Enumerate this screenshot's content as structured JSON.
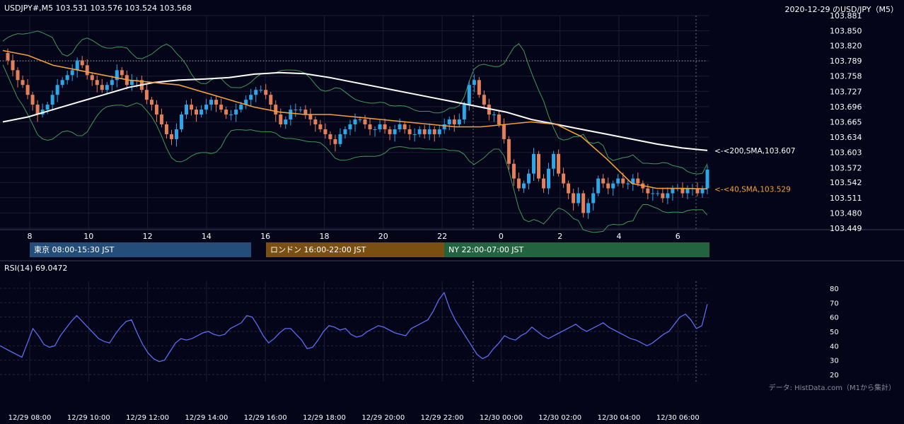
{
  "header": {
    "symbol_info": "USDJPY#,M5 103.531 103.576 103.524 103.568",
    "date_title": "2020-12-29 のUSD/JPY（M5）"
  },
  "sessions": [
    {
      "label": "東京 08:00-15:30 JST",
      "color": "#244d7a"
    },
    {
      "label": "ロンドン 16:00-22:00 JST",
      "color": "#7a4f12"
    },
    {
      "label": "NY 22:00-07:00 JST",
      "color": "#24633f"
    }
  ],
  "rsi": {
    "label": "RSI(14) 69.0472"
  },
  "footer": {
    "source": "データ: HistData.com（M1から集計）"
  },
  "colors": {
    "background": "#050519",
    "up_candle": "#2ca7e8",
    "down_candle": "#e3805a",
    "sma200": "#ffffff",
    "sma40": "#f2a03a",
    "bollinger": "#3f9a55",
    "rsi_line": "#5b6cf0"
  },
  "chart_data": [
    {
      "type": "candlestick",
      "title": "USDJPY#,M5",
      "x_tick_labels": [
        "8",
        "10",
        "12",
        "14",
        "16",
        "18",
        "20",
        "22",
        "0",
        "2",
        "4",
        "6"
      ],
      "y_tick_labels": [
        "103.881",
        "103.850",
        "103.820",
        "103.789",
        "103.758",
        "103.727",
        "103.696",
        "103.665",
        "103.634",
        "103.603",
        "103.572",
        "103.542",
        "103.511",
        "103.480",
        "103.449"
      ],
      "ylim": [
        103.449,
        103.881
      ],
      "reference_level": 103.789,
      "grid": true,
      "close_series": [
        103.805,
        103.79,
        103.77,
        103.75,
        103.74,
        103.72,
        103.7,
        103.68,
        103.69,
        103.7,
        103.72,
        103.74,
        103.75,
        103.76,
        103.77,
        103.79,
        103.78,
        103.76,
        103.75,
        103.74,
        103.73,
        103.74,
        103.75,
        103.77,
        103.76,
        103.74,
        103.75,
        103.75,
        103.73,
        103.71,
        103.7,
        103.68,
        103.66,
        103.64,
        103.63,
        103.65,
        103.68,
        103.7,
        103.69,
        103.68,
        103.69,
        103.7,
        103.71,
        103.7,
        103.69,
        103.68,
        103.68,
        103.69,
        103.7,
        103.71,
        103.72,
        103.73,
        103.73,
        103.72,
        103.7,
        103.68,
        103.66,
        103.67,
        103.69,
        103.69,
        103.69,
        103.68,
        103.67,
        103.66,
        103.65,
        103.64,
        103.63,
        103.62,
        103.64,
        103.65,
        103.66,
        103.67,
        103.67,
        103.66,
        103.65,
        103.65,
        103.66,
        103.65,
        103.64,
        103.65,
        103.66,
        103.65,
        103.64,
        103.64,
        103.65,
        103.64,
        103.65,
        103.64,
        103.65,
        103.66,
        103.67,
        103.66,
        103.67,
        103.7,
        103.74,
        103.75,
        103.72,
        103.7,
        103.68,
        103.68,
        103.66,
        103.63,
        103.58,
        103.55,
        103.53,
        103.54,
        103.56,
        103.6,
        103.55,
        103.53,
        103.57,
        103.6,
        103.56,
        103.54,
        103.52,
        103.5,
        103.52,
        103.48,
        103.5,
        103.52,
        103.55,
        103.54,
        103.53,
        103.54,
        103.55,
        103.54,
        103.54,
        103.55,
        103.54,
        103.53,
        103.52,
        103.52,
        103.52,
        103.51,
        103.52,
        103.53,
        103.53,
        103.52,
        103.53,
        103.53,
        103.52,
        103.53,
        103.568
      ],
      "series": [
        {
          "name": "SMA",
          "period": 200,
          "annotation": "<-<200,SMA,103.607",
          "values": [
            103.665,
            103.675,
            103.69,
            103.705,
            103.72,
            103.735,
            103.745,
            103.75,
            103.752,
            103.755,
            103.762,
            103.765,
            103.763,
            103.755,
            103.745,
            103.735,
            103.725,
            103.715,
            103.705,
            103.695,
            103.685,
            103.67,
            103.66,
            103.65,
            103.64,
            103.63,
            103.62,
            103.612,
            103.607
          ]
        },
        {
          "name": "SMA",
          "period": 40,
          "annotation": "<-<40,SMA,103.529",
          "values": [
            103.81,
            103.8,
            103.78,
            103.77,
            103.76,
            103.75,
            103.745,
            103.74,
            103.725,
            103.71,
            103.695,
            103.685,
            103.68,
            103.68,
            103.675,
            103.67,
            103.665,
            103.66,
            103.655,
            103.655,
            103.66,
            103.665,
            103.66,
            103.635,
            103.59,
            103.54,
            103.53,
            103.53,
            103.529
          ]
        }
      ]
    },
    {
      "type": "line",
      "title": "RSI(14) 69.0472",
      "y_tick_labels": [
        "80",
        "70",
        "60",
        "50",
        "40",
        "30",
        "20"
      ],
      "ylim": [
        20,
        80
      ],
      "x_tick_labels": [
        "12/29 08:00",
        "12/29 10:00",
        "12/29 12:00",
        "12/29 14:00",
        "12/29 16:00",
        "12/29 18:00",
        "12/29 20:00",
        "12/29 22:00",
        "12/30 00:00",
        "12/30 02:00",
        "12/30 04:00",
        "12/30 06:00"
      ],
      "series": [
        {
          "name": "RSI(14)",
          "values": [
            40,
            38,
            36,
            34,
            32,
            42,
            52,
            47,
            41,
            39,
            40,
            47,
            52,
            57,
            61,
            57,
            53,
            49,
            45,
            43,
            42,
            48,
            53,
            57,
            58,
            49,
            41,
            35,
            31,
            29,
            30,
            36,
            42,
            45,
            44,
            45,
            47,
            49,
            50,
            48,
            47,
            48,
            52,
            54,
            56,
            61,
            60,
            54,
            47,
            42,
            45,
            49,
            52,
            52,
            48,
            44,
            38,
            39,
            44,
            50,
            54,
            53,
            51,
            52,
            48,
            46,
            47,
            50,
            52,
            54,
            53,
            51,
            49,
            48,
            47,
            52,
            54,
            56,
            58,
            64,
            72,
            77,
            66,
            58,
            52,
            46,
            40,
            34,
            31,
            33,
            38,
            42,
            47,
            45,
            44,
            47,
            49,
            53,
            50,
            47,
            45,
            47,
            49,
            51,
            53,
            55,
            52,
            50,
            52,
            54,
            56,
            53,
            51,
            49,
            47,
            45,
            44,
            42,
            40,
            42,
            45,
            48,
            50,
            55,
            60,
            62,
            58,
            52,
            54,
            69
          ]
        }
      ]
    }
  ]
}
